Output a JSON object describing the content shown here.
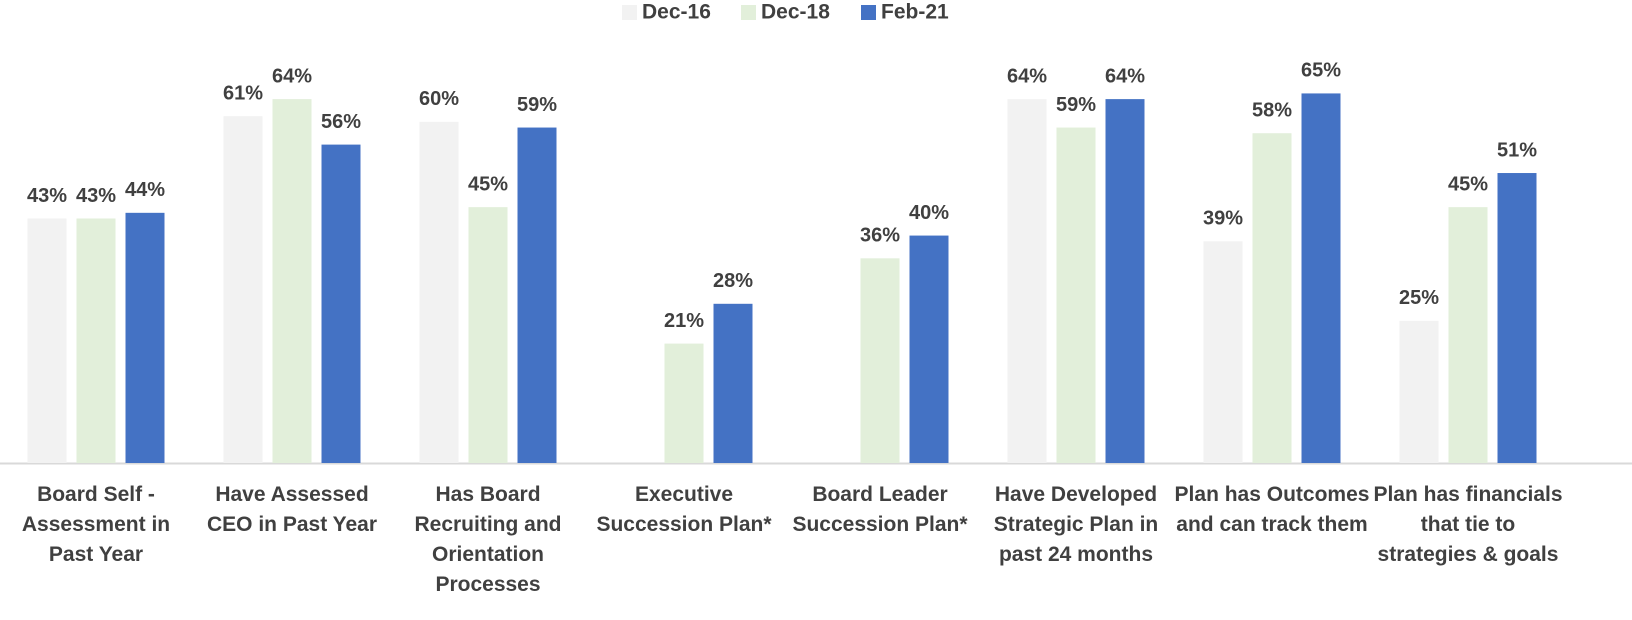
{
  "chart_data": {
    "type": "bar",
    "categories": [
      "Board Self - Assessment in Past Year",
      "Have Assessed CEO in Past Year",
      "Has Board Recruiting and Orientation Processes",
      "Executive Succession Plan*",
      "Board Leader Succession Plan*",
      "Have Developed Strategic Plan in past 24 months",
      "Plan has Outcomes and can track them",
      "Plan has financials that tie to strategies & goals"
    ],
    "series": [
      {
        "name": "Dec-16",
        "color": "#f2f2f2",
        "values": [
          43,
          61,
          60,
          null,
          null,
          64,
          39,
          25
        ],
        "value_labels": [
          "43%",
          "61%",
          "60%",
          null,
          null,
          "64%",
          "39%",
          "25%"
        ]
      },
      {
        "name": "Dec-18",
        "color": "#e2efda",
        "values": [
          43,
          64,
          45,
          21,
          36,
          59,
          58,
          45
        ],
        "value_labels": [
          "43%",
          "64%",
          "45%",
          "21%",
          "36%",
          "59%",
          "58%",
          "45%"
        ]
      },
      {
        "name": "Feb-21",
        "color": "#4472c4",
        "values": [
          44,
          56,
          59,
          28,
          40,
          64,
          65,
          51
        ],
        "value_labels": [
          "44%",
          "56%",
          "59%",
          "28%",
          "40%",
          "64%",
          "65%",
          "51%"
        ]
      }
    ],
    "ylim": [
      0,
      70
    ],
    "legend": "top"
  }
}
